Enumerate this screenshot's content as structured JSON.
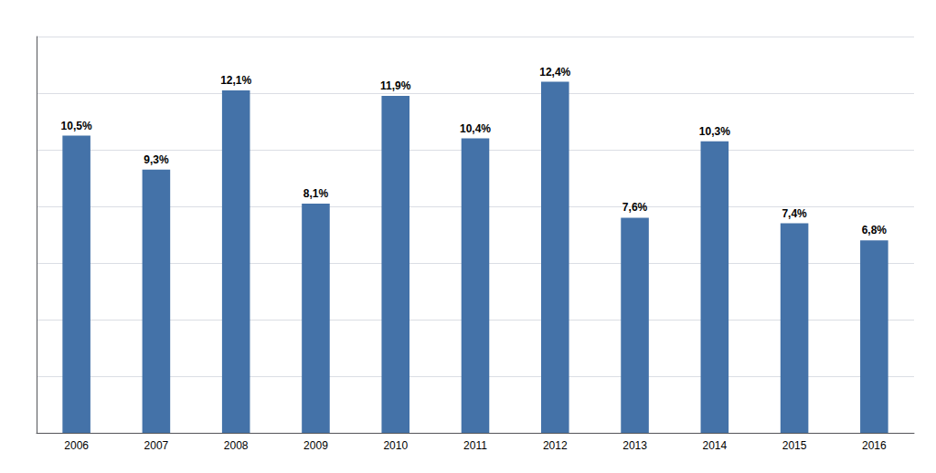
{
  "chart_data": {
    "type": "bar",
    "categories": [
      "2006",
      "2007",
      "2008",
      "2009",
      "2010",
      "2011",
      "2012",
      "2013",
      "2014",
      "2015",
      "2016"
    ],
    "values": [
      10.5,
      9.3,
      12.1,
      8.1,
      11.9,
      10.4,
      12.4,
      7.6,
      10.3,
      7.4,
      6.8
    ],
    "value_labels": [
      "10,5%",
      "9,3%",
      "12,1%",
      "8,1%",
      "11,9%",
      "10,4%",
      "12,4%",
      "7,6%",
      "10,3%",
      "7,4%",
      "6,8%"
    ],
    "data_labels": true,
    "color": "#4472a8",
    "ylim": [
      0,
      14
    ],
    "yticks": [
      2,
      4,
      6,
      8,
      10,
      12,
      14
    ],
    "grid": true,
    "tick_labels": "x"
  }
}
